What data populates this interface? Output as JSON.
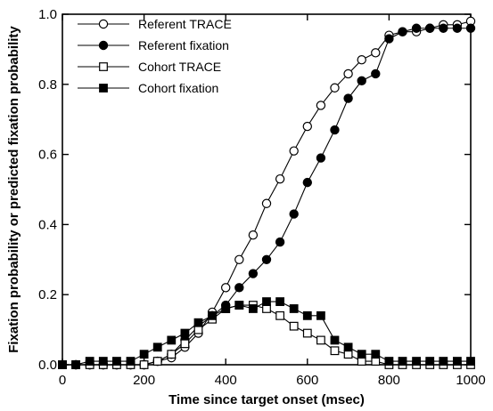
{
  "chart_data": {
    "type": "line",
    "xlabel": "Time since target onset (msec)",
    "ylabel": "Fixation probability or predicted fixation probability",
    "xlim": [
      0,
      1000
    ],
    "ylim": [
      0,
      1.0
    ],
    "x_ticks": [
      0,
      200,
      400,
      600,
      800,
      1000
    ],
    "y_ticks": [
      0.0,
      0.2,
      0.4,
      0.6,
      0.8,
      1.0
    ],
    "x_tick_labels": [
      "0",
      "200",
      "400",
      "600",
      "800",
      "1000"
    ],
    "y_tick_labels": [
      "0.0",
      "0.2",
      "0.4",
      "0.6",
      "0.8",
      "1.0"
    ],
    "legend_position": "top-left",
    "grid": false,
    "series": [
      {
        "name": "Referent TRACE",
        "marker": "circle",
        "filled": false,
        "x": [
          33,
          67,
          100,
          133,
          167,
          200,
          233,
          267,
          300,
          333,
          367,
          400,
          433,
          467,
          500,
          533,
          567,
          600,
          633,
          667,
          700,
          733,
          767,
          800,
          833,
          867,
          900,
          933,
          967,
          1000
        ],
        "y": [
          0.0,
          0.0,
          0.0,
          0.0,
          0.0,
          0.0,
          0.01,
          0.02,
          0.05,
          0.09,
          0.15,
          0.22,
          0.3,
          0.37,
          0.46,
          0.53,
          0.61,
          0.68,
          0.74,
          0.79,
          0.83,
          0.87,
          0.89,
          0.94,
          0.95,
          0.95,
          0.96,
          0.97,
          0.97,
          0.98
        ]
      },
      {
        "name": "Referent fixation",
        "marker": "circle",
        "filled": true,
        "x": [
          33,
          67,
          100,
          133,
          167,
          200,
          233,
          267,
          300,
          333,
          367,
          400,
          433,
          467,
          500,
          533,
          567,
          600,
          633,
          667,
          700,
          733,
          767,
          800,
          833,
          867,
          900,
          933,
          967,
          1000
        ],
        "y": [
          0.0,
          0.0,
          0.0,
          0.0,
          0.0,
          0.0,
          0.01,
          0.03,
          0.07,
          0.11,
          0.14,
          0.17,
          0.22,
          0.26,
          0.3,
          0.35,
          0.43,
          0.52,
          0.59,
          0.67,
          0.76,
          0.81,
          0.83,
          0.93,
          0.95,
          0.96,
          0.96,
          0.96,
          0.96,
          0.96
        ]
      },
      {
        "name": "Cohort TRACE",
        "marker": "square",
        "filled": false,
        "x": [
          0,
          33,
          67,
          100,
          133,
          167,
          200,
          233,
          267,
          300,
          333,
          367,
          400,
          433,
          467,
          500,
          533,
          567,
          600,
          633,
          667,
          700,
          733,
          767,
          800,
          833,
          867,
          900,
          933,
          967,
          1000
        ],
        "y": [
          0.0,
          0.0,
          0.0,
          0.0,
          0.0,
          0.0,
          0.0,
          0.01,
          0.03,
          0.06,
          0.1,
          0.13,
          0.16,
          0.17,
          0.17,
          0.16,
          0.14,
          0.11,
          0.09,
          0.07,
          0.04,
          0.03,
          0.01,
          0.01,
          0.0,
          0.0,
          0.0,
          0.0,
          0.0,
          0.0,
          0.0
        ]
      },
      {
        "name": "Cohort fixation",
        "marker": "square",
        "filled": true,
        "x": [
          0,
          33,
          67,
          100,
          133,
          167,
          200,
          233,
          267,
          300,
          333,
          367,
          400,
          433,
          467,
          500,
          533,
          567,
          600,
          633,
          667,
          700,
          733,
          767,
          800,
          833,
          867,
          900,
          933,
          967,
          1000
        ],
        "y": [
          0.0,
          0.0,
          0.01,
          0.01,
          0.01,
          0.01,
          0.03,
          0.05,
          0.07,
          0.09,
          0.12,
          0.14,
          0.16,
          0.17,
          0.16,
          0.18,
          0.18,
          0.16,
          0.14,
          0.14,
          0.07,
          0.05,
          0.03,
          0.03,
          0.01,
          0.01,
          0.01,
          0.01,
          0.01,
          0.01,
          0.01
        ]
      }
    ]
  }
}
